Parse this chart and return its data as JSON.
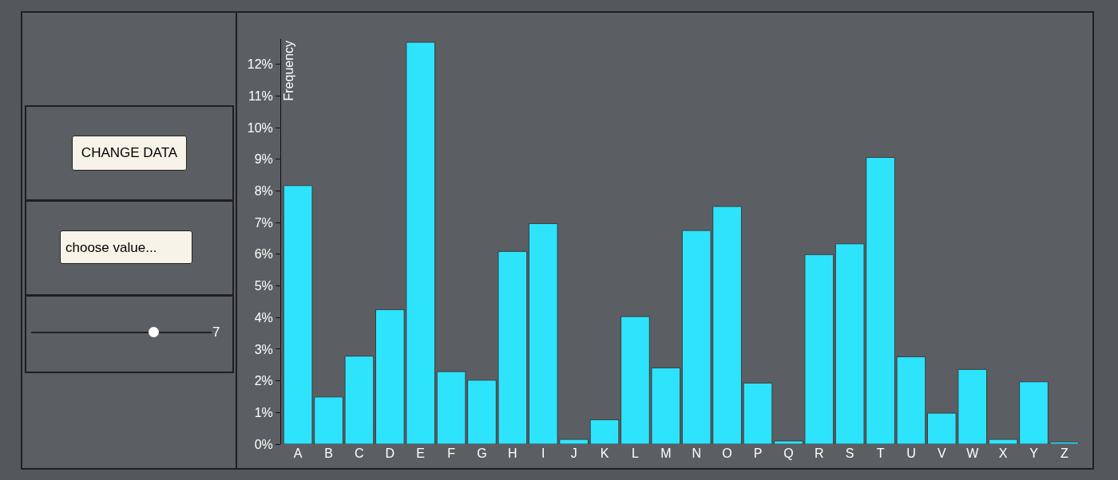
{
  "chart_data": [
    {
      "type": "bar",
      "ylabel": "Frequency",
      "categories": [
        "A",
        "B",
        "C",
        "D",
        "E",
        "F",
        "G",
        "H",
        "I",
        "J",
        "K",
        "L",
        "M",
        "N",
        "O",
        "P",
        "Q",
        "R",
        "S",
        "T",
        "U",
        "V",
        "W",
        "X",
        "Y",
        "Z"
      ],
      "values": [
        8.17,
        1.49,
        2.78,
        4.25,
        12.7,
        2.29,
        2.02,
        6.09,
        6.97,
        0.15,
        0.77,
        4.03,
        2.41,
        6.75,
        7.51,
        1.93,
        0.1,
        5.99,
        6.33,
        9.06,
        2.76,
        0.98,
        2.36,
        0.15,
        1.97,
        0.07
      ],
      "color": "#2ee4fc",
      "ylim": [
        0,
        12.8
      ],
      "yticks": [
        {
          "value": 0,
          "label": "0%"
        },
        {
          "value": 1,
          "label": "1%"
        },
        {
          "value": 2,
          "label": "2%"
        },
        {
          "value": 3,
          "label": "3%"
        },
        {
          "value": 4,
          "label": "4%"
        },
        {
          "value": 5,
          "label": "5%"
        },
        {
          "value": 6,
          "label": "6%"
        },
        {
          "value": 7,
          "label": "7%"
        },
        {
          "value": 8,
          "label": "8%"
        },
        {
          "value": 9,
          "label": "9%"
        },
        {
          "value": 10,
          "label": "10%"
        },
        {
          "value": 11,
          "label": "11%"
        },
        {
          "value": 12,
          "label": "12%"
        }
      ],
      "grid": false,
      "legend": false
    },
    {
      "type": "other",
      "annotations": [
        "CHANGE DATA",
        "choose value...",
        "7"
      ]
    }
  ]
}
